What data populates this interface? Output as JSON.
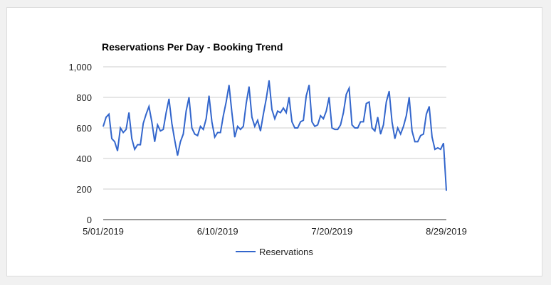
{
  "chart_data": {
    "type": "line",
    "title": "Reservations Per Day - Booking Trend",
    "xlabel": "",
    "ylabel": "",
    "x_tick_labels": [
      "5/01/2019",
      "6/10/2019",
      "7/20/2019",
      "8/29/2019"
    ],
    "y_tick_labels": [
      "0",
      "200",
      "400",
      "600",
      "800",
      "1,000"
    ],
    "ylim": [
      0,
      1000
    ],
    "x_start": "2019-05-01",
    "x_end": "2019-08-29",
    "grid": true,
    "legend": "bottom",
    "series": [
      {
        "name": "Reservations",
        "color": "#3366cc",
        "values": [
          610,
          670,
          690,
          530,
          510,
          450,
          600,
          570,
          590,
          700,
          530,
          460,
          490,
          490,
          630,
          690,
          740,
          640,
          510,
          620,
          580,
          590,
          700,
          790,
          630,
          520,
          420,
          510,
          560,
          710,
          800,
          600,
          560,
          550,
          610,
          590,
          660,
          810,
          640,
          540,
          570,
          570,
          680,
          770,
          880,
          700,
          540,
          610,
          590,
          610,
          760,
          870,
          670,
          610,
          650,
          580,
          690,
          790,
          910,
          720,
          660,
          710,
          700,
          730,
          700,
          800,
          640,
          600,
          600,
          640,
          650,
          810,
          880,
          640,
          610,
          620,
          680,
          660,
          710,
          800,
          600,
          590,
          590,
          620,
          700,
          820,
          860,
          620,
          600,
          600,
          640,
          640,
          760,
          770,
          600,
          580,
          670,
          560,
          620,
          770,
          840,
          640,
          530,
          600,
          560,
          610,
          680,
          800,
          580,
          510,
          510,
          550,
          560,
          690,
          740,
          540,
          460,
          470,
          460,
          500,
          190
        ]
      }
    ]
  }
}
